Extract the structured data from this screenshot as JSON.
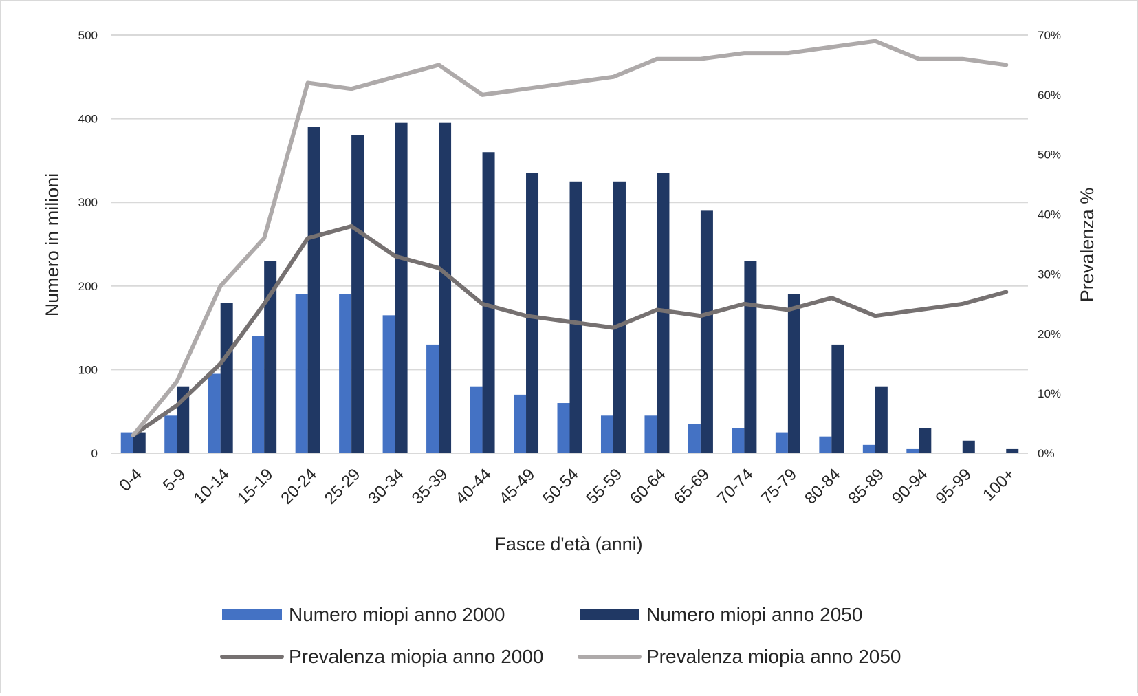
{
  "chart_data": {
    "type": "bar",
    "categories": [
      "0-4",
      "5-9",
      "10-14",
      "15-19",
      "20-24",
      "25-29",
      "30-34",
      "35-39",
      "40-44",
      "45-49",
      "50-54",
      "55-59",
      "60-64",
      "65-69",
      "70-74",
      "75-79",
      "80-84",
      "85-89",
      "90-94",
      "95-99",
      "100+"
    ],
    "xlabel": "Fasce d'età (anni)",
    "ylabel": "Numero in milioni",
    "y2label": "Prevalenza %",
    "ylim": [
      0,
      500
    ],
    "y2lim": [
      0,
      70
    ],
    "yticks": [
      "0",
      "100",
      "200",
      "300",
      "400",
      "500"
    ],
    "y2ticks": [
      "0%",
      "10%",
      "20%",
      "30%",
      "40%",
      "50%",
      "60%",
      "70%"
    ],
    "grid": true,
    "legend_position": "bottom",
    "series": [
      {
        "name": "Numero miopi anno 2000",
        "kind": "bar",
        "axis": "left",
        "color": "#4472C4",
        "values": [
          25,
          45,
          95,
          140,
          190,
          190,
          165,
          130,
          80,
          70,
          60,
          45,
          45,
          35,
          30,
          25,
          20,
          10,
          5,
          0,
          0
        ]
      },
      {
        "name": "Numero miopi anno 2050",
        "kind": "bar",
        "axis": "left",
        "color": "#203864",
        "values": [
          25,
          80,
          180,
          230,
          390,
          380,
          395,
          395,
          360,
          335,
          325,
          325,
          335,
          290,
          230,
          190,
          130,
          80,
          30,
          15,
          5
        ]
      },
      {
        "name": "Prevalenza miopia anno 2000",
        "kind": "line",
        "axis": "right",
        "color": "#767171",
        "values": [
          3,
          8,
          15,
          25,
          36,
          38,
          33,
          31,
          25,
          23,
          22,
          21,
          24,
          23,
          25,
          24,
          26,
          23,
          24,
          25,
          27
        ]
      },
      {
        "name": "Prevalenza miopia anno 2050",
        "kind": "line",
        "axis": "right",
        "color": "#AEAAAA",
        "values": [
          3,
          12,
          28,
          36,
          62,
          61,
          63,
          65,
          60,
          61,
          62,
          63,
          66,
          66,
          67,
          67,
          68,
          69,
          66,
          66,
          65
        ]
      }
    ]
  },
  "colors": {
    "grid": "#d9d9d9",
    "text": "#262626"
  }
}
